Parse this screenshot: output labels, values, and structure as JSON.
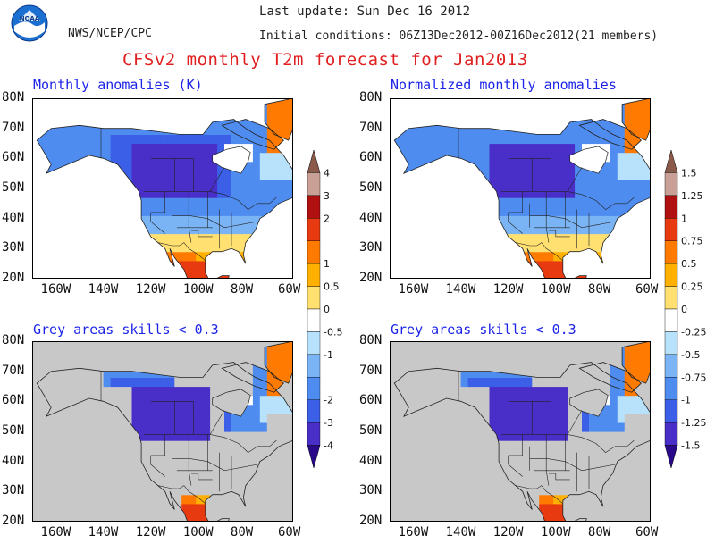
{
  "header": {
    "agency": "NWS/NCEP/CPC",
    "logo_text": "NOAA",
    "last_update": "Last update: Sun Dec 16 2012",
    "initial_conditions": "Initial conditions: 06Z13Dec2012-00Z16Dec2012(21 members)",
    "title": "CFSv2 monthly T2m forecast for Jan2013"
  },
  "panels": [
    {
      "title": "Monthly anomalies (K)",
      "mask": false
    },
    {
      "title": "Normalized monthly anomalies",
      "mask": false
    },
    {
      "title": "Grey areas skills < 0.3",
      "mask": true
    },
    {
      "title": "Grey areas skills < 0.3",
      "mask": true
    }
  ],
  "axes": {
    "lat_labels": [
      "80N",
      "70N",
      "60N",
      "50N",
      "40N",
      "30N",
      "20N"
    ],
    "lon_labels": [
      "160W",
      "140W",
      "120W",
      "100W",
      "80W",
      "60W"
    ],
    "lat_values": [
      80,
      70,
      60,
      50,
      40,
      30,
      20
    ],
    "lon_values": [
      -160,
      -140,
      -120,
      -100,
      -80,
      -60
    ],
    "lat_range": [
      20,
      80
    ],
    "lon_range": [
      -170,
      -60
    ]
  },
  "colorbars": {
    "left_labels": [
      "4",
      "3",
      "2",
      "1",
      "0.5",
      "0",
      "-0.5",
      "-1",
      "-2",
      "-3",
      "-4"
    ],
    "right_labels": [
      "1.5",
      "1.25",
      "1",
      "0.75",
      "0.5",
      "0.25",
      "0",
      "-0.25",
      "-0.5",
      "-0.75",
      "-1",
      "-1.25",
      "-1.5"
    ],
    "colors": [
      "#2a0a8a",
      "#4a2ec8",
      "#3b5fe6",
      "#4f8cf0",
      "#7ab4f5",
      "#b8e2fb",
      "#ffffff",
      "#ffe070",
      "#ffb000",
      "#ff7a00",
      "#e83a10",
      "#b01010",
      "#c8a096",
      "#8a5a4a"
    ],
    "mask_color": "#c8c8c8",
    "land_outline_color": "#222222",
    "ocean_color": "#ffffff"
  }
}
